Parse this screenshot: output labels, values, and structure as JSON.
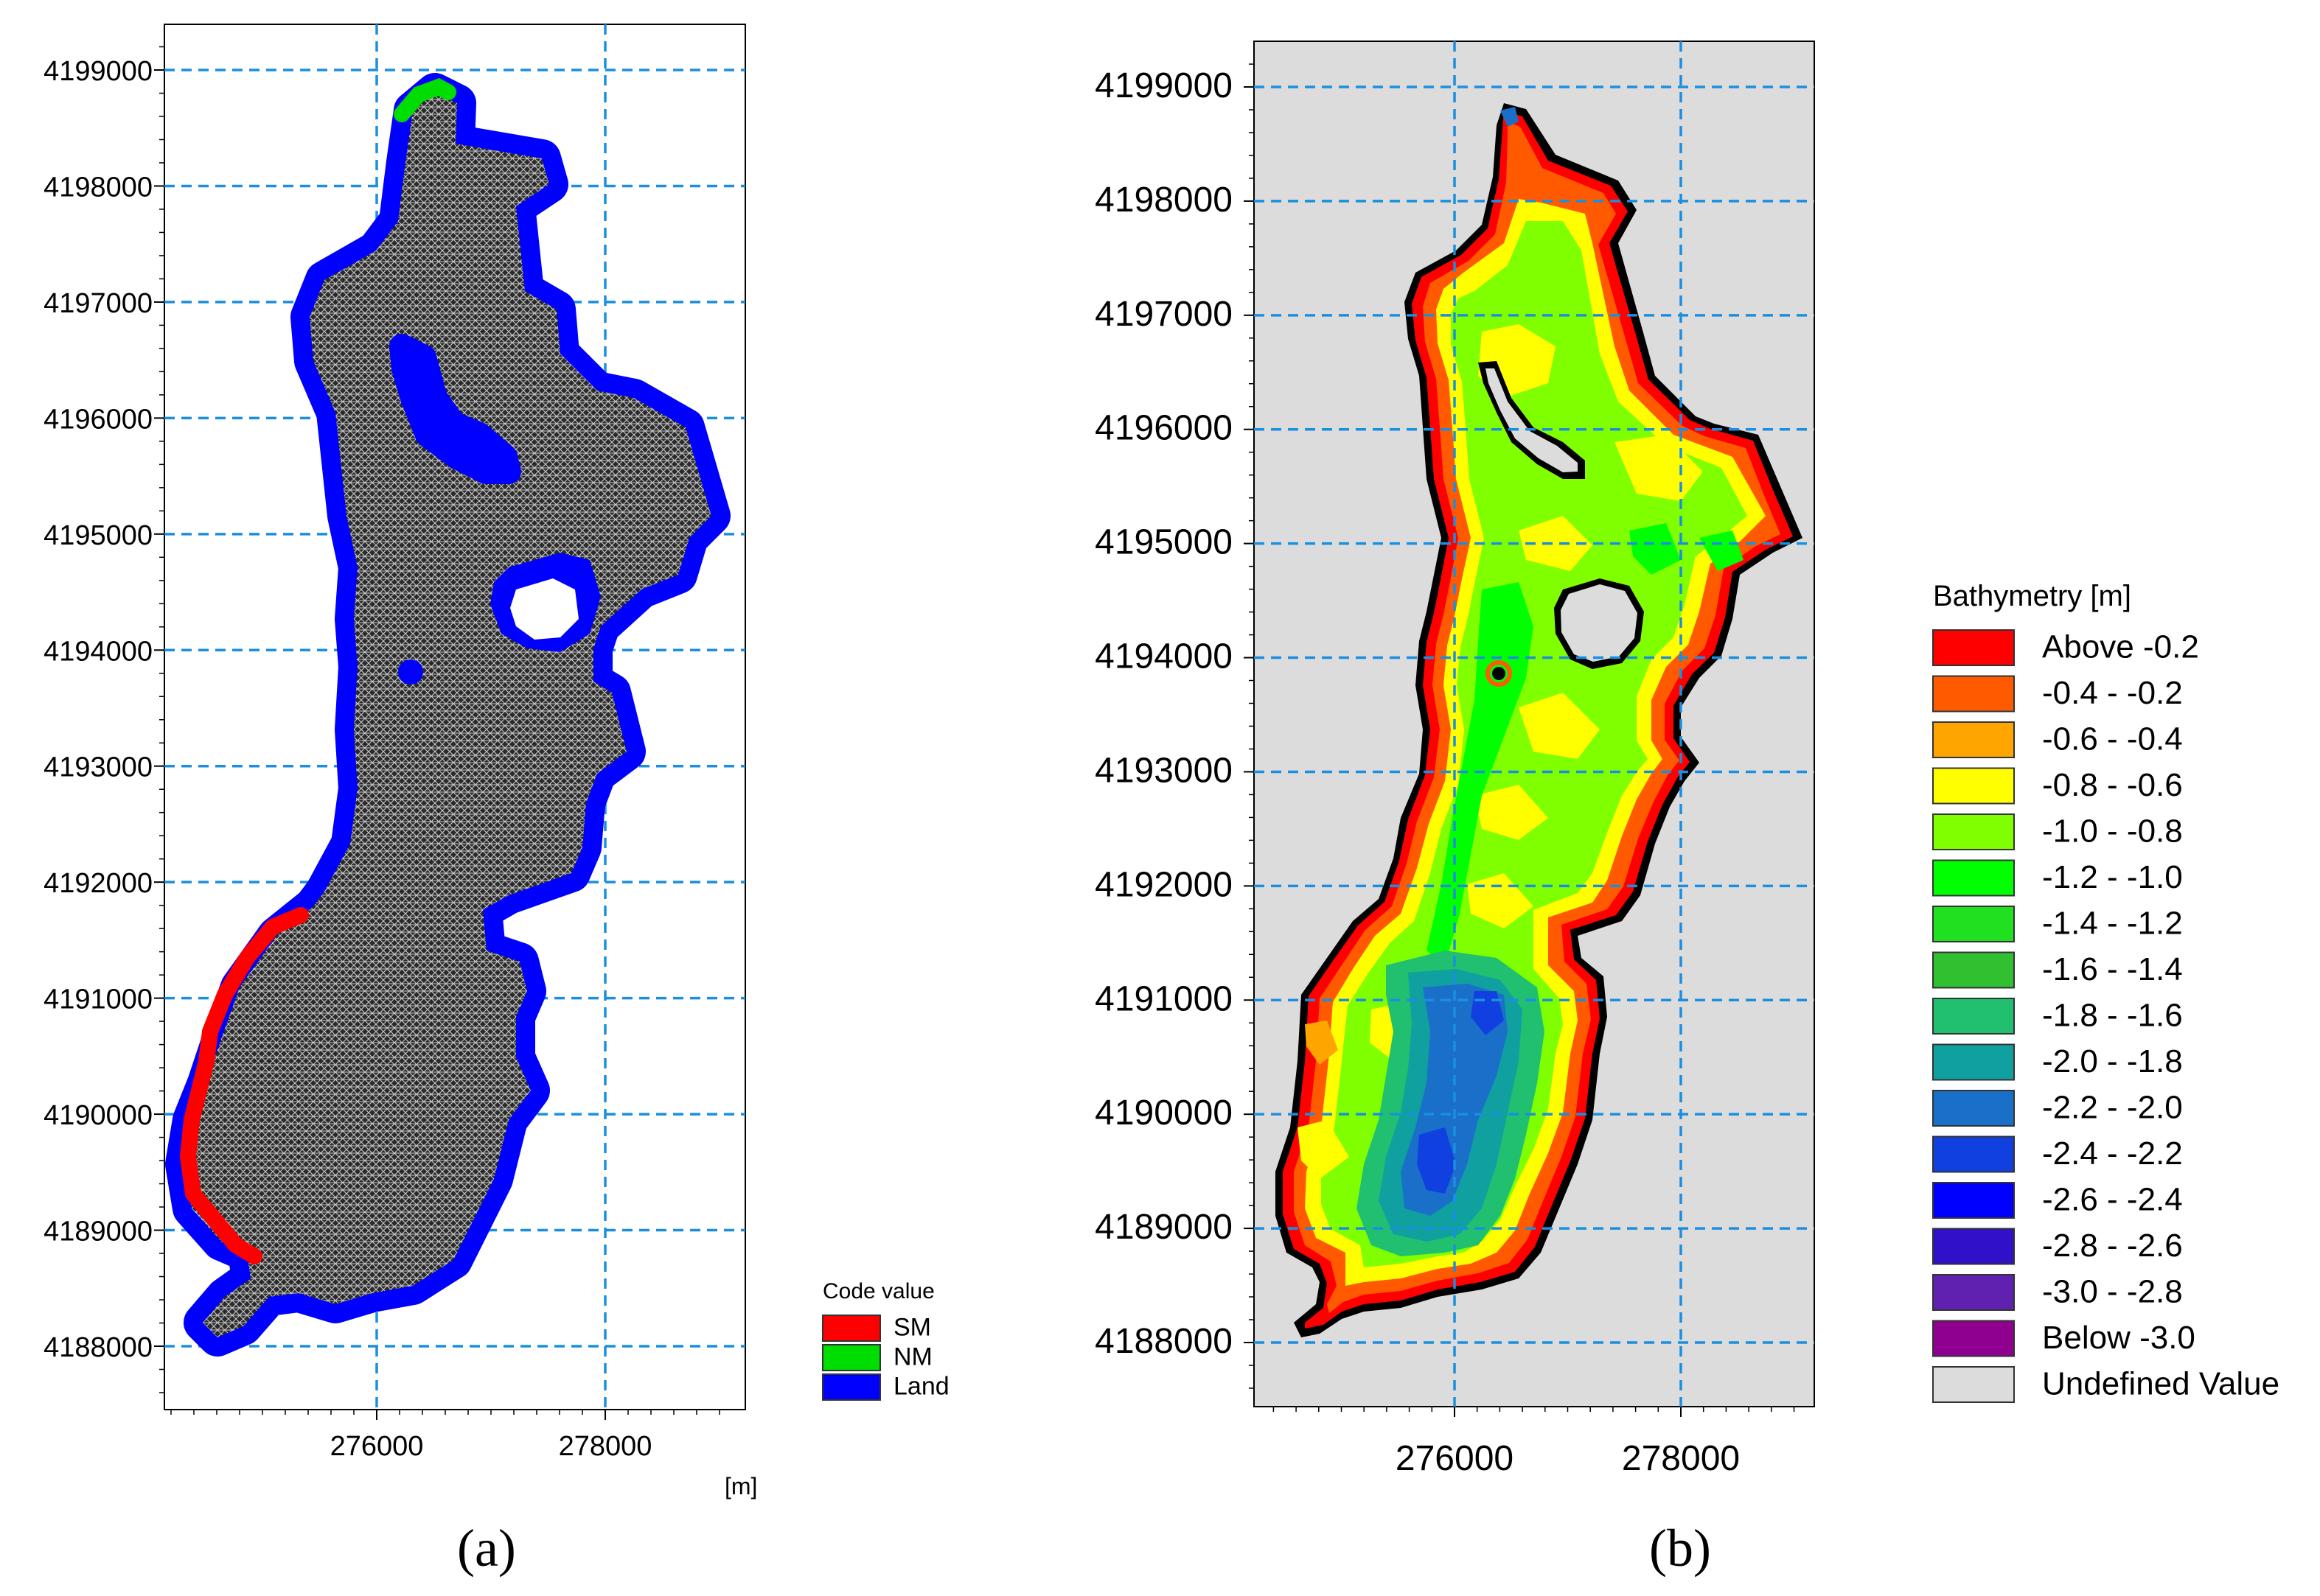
{
  "chart_data": [
    {
      "type": "map",
      "panel_label": "(a)",
      "x_unit": "[m]",
      "x_ticks": [
        276000,
        278000
      ],
      "y_ticks": [
        4188000,
        4189000,
        4190000,
        4191000,
        4192000,
        4193000,
        4194000,
        4195000,
        4196000,
        4197000,
        4198000,
        4199000
      ],
      "xlim": [
        274200,
        279200
      ],
      "ylim": [
        4187500,
        4199400
      ],
      "grid": true,
      "legend": {
        "title": "Code value",
        "placement": "right",
        "entries": [
          {
            "label": "SM",
            "color": "#ff0000"
          },
          {
            "label": "NM",
            "color": "#00dd00"
          },
          {
            "label": "Land",
            "color": "#0000ff"
          }
        ]
      },
      "mesh_fill_color": "#2a2a2a"
    },
    {
      "type": "map",
      "panel_label": "(b)",
      "x_ticks": [
        276000,
        278000
      ],
      "y_ticks": [
        4188000,
        4189000,
        4190000,
        4191000,
        4192000,
        4193000,
        4194000,
        4195000,
        4196000,
        4197000,
        4198000,
        4199000
      ],
      "xlim": [
        274200,
        279200
      ],
      "ylim": [
        4187500,
        4199400
      ],
      "grid": true,
      "background_color": "#dcdcdc",
      "legend": {
        "title": "Bathymetry [m]",
        "placement": "right",
        "entries": [
          {
            "label": "Above -0.2",
            "color": "#ff0000"
          },
          {
            "label": "-0.4 - -0.2",
            "color": "#ff5a00"
          },
          {
            "label": "-0.6 - -0.4",
            "color": "#ffa500"
          },
          {
            "label": "-0.8 - -0.6",
            "color": "#ffff00"
          },
          {
            "label": "-1.0 - -0.8",
            "color": "#80ff00"
          },
          {
            "label": "-1.2 - -1.0",
            "color": "#00ff00"
          },
          {
            "label": "-1.4 - -1.2",
            "color": "#20e020"
          },
          {
            "label": "-1.6 - -1.4",
            "color": "#30c030"
          },
          {
            "label": "-1.8 - -1.6",
            "color": "#20c070"
          },
          {
            "label": "-2.0 - -1.8",
            "color": "#10a0a0"
          },
          {
            "label": "-2.2 - -2.0",
            "color": "#1a70c8"
          },
          {
            "label": "-2.4 - -2.2",
            "color": "#1040e0"
          },
          {
            "label": "-2.6 - -2.4",
            "color": "#0000ff"
          },
          {
            "label": "-2.8 - -2.6",
            "color": "#3010c8"
          },
          {
            "label": "-3.0 - -2.8",
            "color": "#6020b0"
          },
          {
            "label": "Below -3.0",
            "color": "#900090"
          },
          {
            "label": "Undefined Value",
            "color": "#dcdcdc"
          }
        ]
      }
    }
  ]
}
